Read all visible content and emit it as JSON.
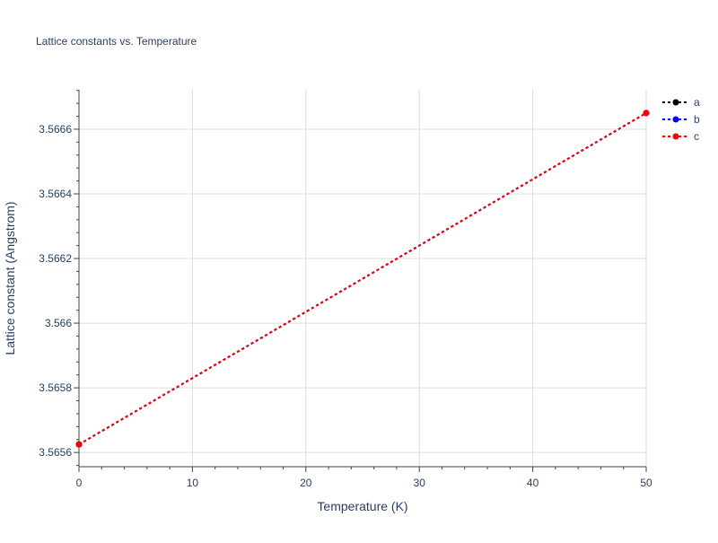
{
  "chart_data": {
    "type": "line",
    "title": "Lattice constants vs. Temperature",
    "xlabel": "Temperature (K)",
    "ylabel": "Lattice constant (Angstrom)",
    "xlim": [
      0,
      50
    ],
    "ylim": [
      3.565556,
      3.566722
    ],
    "xticks": [
      0,
      10,
      20,
      30,
      40,
      50
    ],
    "xtick_labels": [
      "0",
      "10",
      "20",
      "30",
      "40",
      "50"
    ],
    "yticks": [
      3.5656,
      3.5658,
      3.566,
      3.5662,
      3.5664,
      3.5666
    ],
    "ytick_labels": [
      "3.5656",
      "3.5658",
      "3.566",
      "3.5662",
      "3.5664",
      "3.5666"
    ],
    "grid": true,
    "legend_placement": "top-right",
    "series": [
      {
        "name": "a",
        "color": "#000000",
        "x": [
          0,
          50
        ],
        "y": [
          3.565625,
          3.56665
        ]
      },
      {
        "name": "b",
        "color": "#0000ff",
        "x": [
          0,
          50
        ],
        "y": [
          3.565625,
          3.56665
        ]
      },
      {
        "name": "c",
        "color": "#ff0000",
        "x": [
          0,
          50
        ],
        "y": [
          3.565625,
          3.56665
        ]
      }
    ]
  }
}
